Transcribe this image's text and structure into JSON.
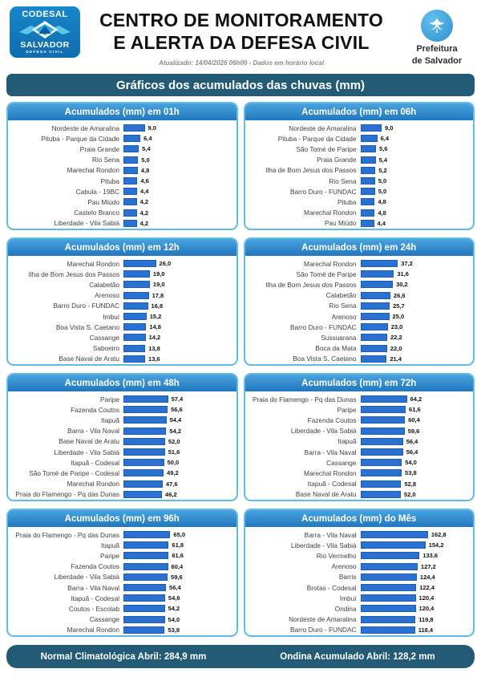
{
  "header": {
    "codesal_logo": {
      "line1": "CODESAL",
      "line2": "SALVADOR",
      "line3": "DEFESA CIVIL"
    },
    "title_line1": "CENTRO DE MONITORAMENTO",
    "title_line2": "E ALERTA DA DEFESA CIVIL",
    "updated": "Atualizado: 14/04/2026 06h00 - Dados em horário local",
    "prefeitura_logo": {
      "line1": "Prefeitura",
      "line2": "de Salvador"
    }
  },
  "banner": "Gráficos dos acumulados das chuvas (mm)",
  "colors": {
    "bar_blue": "#2b71d1",
    "panel_border": "#5fbbe8",
    "chart_header_blue": "#2e86c8",
    "banner_dark_blue": "#235b77",
    "logo_blue": "#1479be"
  },
  "chart_data": [
    {
      "type": "bar",
      "orientation": "horizontal",
      "title": "Acumulados (mm) em 01h",
      "xlabel": "",
      "ylabel": "",
      "unit": "mm",
      "grid": false,
      "legend": "none",
      "categories": [
        "Nordeste de Amaralina",
        "Pituba - Parque da Cidade",
        "Praia Grande",
        "Rio Sena",
        "Marechal Rondon",
        "Pituba",
        "Cabula - 19BC",
        "Pau Miúdo",
        "Castelo Branco",
        "Liberdade - Vila Sabiá"
      ],
      "values": [
        9.0,
        6.4,
        5.4,
        5.0,
        4.8,
        4.6,
        4.4,
        4.2,
        4.2,
        4.2
      ]
    },
    {
      "type": "bar",
      "orientation": "horizontal",
      "title": "Acumulados (mm) em 06h",
      "xlabel": "",
      "ylabel": "",
      "unit": "mm",
      "grid": false,
      "legend": "none",
      "categories": [
        "Nordeste de Amaralina",
        "Pituba - Parque da Cidade",
        "São Tomé de Paripe",
        "Praia Grande",
        "Ilha de Bom Jesus dos Passos",
        "Rio Sena",
        "Barro Duro - FUNDAC",
        "Pituba",
        "Marechal Rondon",
        "Pau Miúdo"
      ],
      "values": [
        9.0,
        6.4,
        5.6,
        5.4,
        5.2,
        5.0,
        5.0,
        4.8,
        4.8,
        4.4
      ]
    },
    {
      "type": "bar",
      "orientation": "horizontal",
      "title": "Acumulados (mm) em 12h",
      "xlabel": "",
      "ylabel": "",
      "unit": "mm",
      "grid": false,
      "legend": "none",
      "categories": [
        "Marechal Rondon",
        "Ilha de Bom Jesus dos Passos",
        "Calabetão",
        "Arenoso",
        "Barro Duro - FUNDAC",
        "Imbuí",
        "Boa Vista S. Caetano",
        "Cassange",
        "Saboeiro",
        "Base Naval de Aratu"
      ],
      "values": [
        26.0,
        19.0,
        19.0,
        17.8,
        16.8,
        15.2,
        14.8,
        14.2,
        13.8,
        13.6
      ]
    },
    {
      "type": "bar",
      "orientation": "horizontal",
      "title": "Acumulados (mm) em 24h",
      "xlabel": "",
      "ylabel": "",
      "unit": "mm",
      "grid": false,
      "legend": "none",
      "categories": [
        "Marechal Rondon",
        "São Tomé de Paripe",
        "Ilha de Bom Jesus dos Passos",
        "Calabetão",
        "Rio Sena",
        "Arenoso",
        "Barro Duro - FUNDAC",
        "Sussuarana",
        "Boca da Mata",
        "Boa Vista S. Caetano"
      ],
      "values": [
        37.2,
        31.6,
        30.2,
        26.6,
        25.7,
        25.0,
        23.0,
        22.2,
        22.0,
        21.4
      ]
    },
    {
      "type": "bar",
      "orientation": "horizontal",
      "title": "Acumulados (mm) em 48h",
      "xlabel": "",
      "ylabel": "",
      "unit": "mm",
      "grid": false,
      "legend": "none",
      "categories": [
        "Paripe",
        "Fazenda Coutos",
        "Itapuã",
        "Barra - Vila Naval",
        "Base Naval de Aratu",
        "Liberdade - Vila Sabiá",
        "Itapuã - Codesal",
        "São Tomé de Paripe - Codesal",
        "Marechal Rondon",
        "Praia do Flamengo - Pq das Dunas"
      ],
      "values": [
        57.4,
        56.6,
        54.4,
        54.2,
        52.0,
        51.6,
        50.0,
        49.2,
        47.6,
        46.2
      ]
    },
    {
      "type": "bar",
      "orientation": "horizontal",
      "title": "Acumulados (mm) em 72h",
      "xlabel": "",
      "ylabel": "",
      "unit": "mm",
      "grid": false,
      "legend": "none",
      "categories": [
        "Praia do Flamengo - Pq das Dunas",
        "Paripe",
        "Fazenda Coutos",
        "Liberdade - Vila Sabiá",
        "Itapuã",
        "Barra - Vila Naval",
        "Cassange",
        "Marechal Rondon",
        "Itapuã - Codesal",
        "Base Naval de Aratu"
      ],
      "values": [
        64.2,
        61.6,
        60.4,
        59.6,
        56.4,
        56.4,
        54.0,
        53.8,
        52.8,
        52.0
      ]
    },
    {
      "type": "bar",
      "orientation": "horizontal",
      "title": "Acumulados (mm) em 96h",
      "xlabel": "",
      "ylabel": "",
      "unit": "mm",
      "grid": false,
      "legend": "none",
      "categories": [
        "Praia do Flamengo - Pq das Dunas",
        "Itapuã",
        "Paripe",
        "Fazenda Coutos",
        "Liberdade - Vila Sabiá",
        "Barra - Vila Naval",
        "Itapuã - Codesal",
        "Coutos - Escolab",
        "Cassange",
        "Marechal Rondon"
      ],
      "values": [
        65.0,
        61.8,
        61.6,
        60.4,
        59.6,
        56.4,
        54.6,
        54.2,
        54.0,
        53.8
      ]
    },
    {
      "type": "bar",
      "orientation": "horizontal",
      "title": "Acumulados (mm) do Mês",
      "xlabel": "",
      "ylabel": "",
      "unit": "mm",
      "grid": false,
      "legend": "none",
      "categories": [
        "Barra - Vila Naval",
        "Liberdade - Vila Sabiá",
        "Rio Vermelho",
        "Arenoso",
        "Barris",
        "Brotas - Codesal",
        "Imbuí",
        "Ondina",
        "Nordeste de Amaralina",
        "Barro Duro - FUNDAC"
      ],
      "values": [
        162.8,
        154.2,
        133.6,
        127.2,
        124.4,
        122.4,
        120.4,
        120.4,
        119.8,
        118.4
      ]
    }
  ],
  "footer": {
    "left": "Normal Climatológica Abril: 284,9 mm",
    "right": "Ondina Acumulado Abril: 128,2 mm"
  }
}
